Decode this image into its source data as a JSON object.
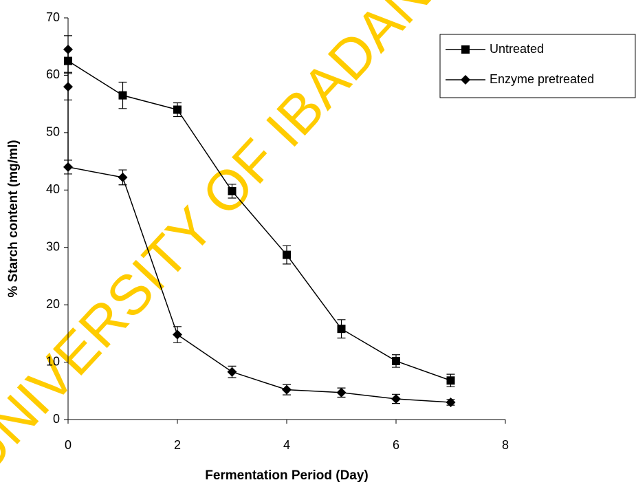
{
  "chart_data": {
    "type": "line",
    "watermark": "UNIVERSITY OF IBADAN",
    "x_label": "Fermentation Period (Day)",
    "y_label": "% Starch content (mg/ml)",
    "xlim": [
      0,
      8
    ],
    "xticks": [
      0,
      2,
      4,
      6,
      8
    ],
    "ylim": [
      0,
      70
    ],
    "yticks": [
      0,
      10,
      20,
      30,
      40,
      50,
      60,
      70
    ],
    "legend": "right",
    "series": [
      {
        "name": "Untreated",
        "color": "#000000",
        "marker": "square",
        "x": [
          0,
          1,
          2,
          3,
          4,
          5,
          6,
          7
        ],
        "values": [
          62.5,
          56.5,
          54,
          39.8,
          28.7,
          15.8,
          10.2,
          6.8
        ],
        "errors": [
          2,
          2.3,
          1.2,
          1.2,
          1.6,
          1.6,
          1.1,
          1.1
        ]
      },
      {
        "name": "Enzyme pretreated",
        "color": "#000000",
        "marker": "diamond",
        "x": [
          0,
          0,
          0,
          1,
          2,
          3,
          4,
          5,
          6,
          7
        ],
        "values": [
          64.5,
          58,
          44,
          42.2,
          14.8,
          8.3,
          5.2,
          4.7,
          3.6,
          3.0
        ],
        "errors": [
          2.4,
          2.3,
          1.2,
          1.3,
          1.4,
          1.0,
          0.9,
          0.8,
          0.8,
          0.5
        ]
      }
    ]
  }
}
